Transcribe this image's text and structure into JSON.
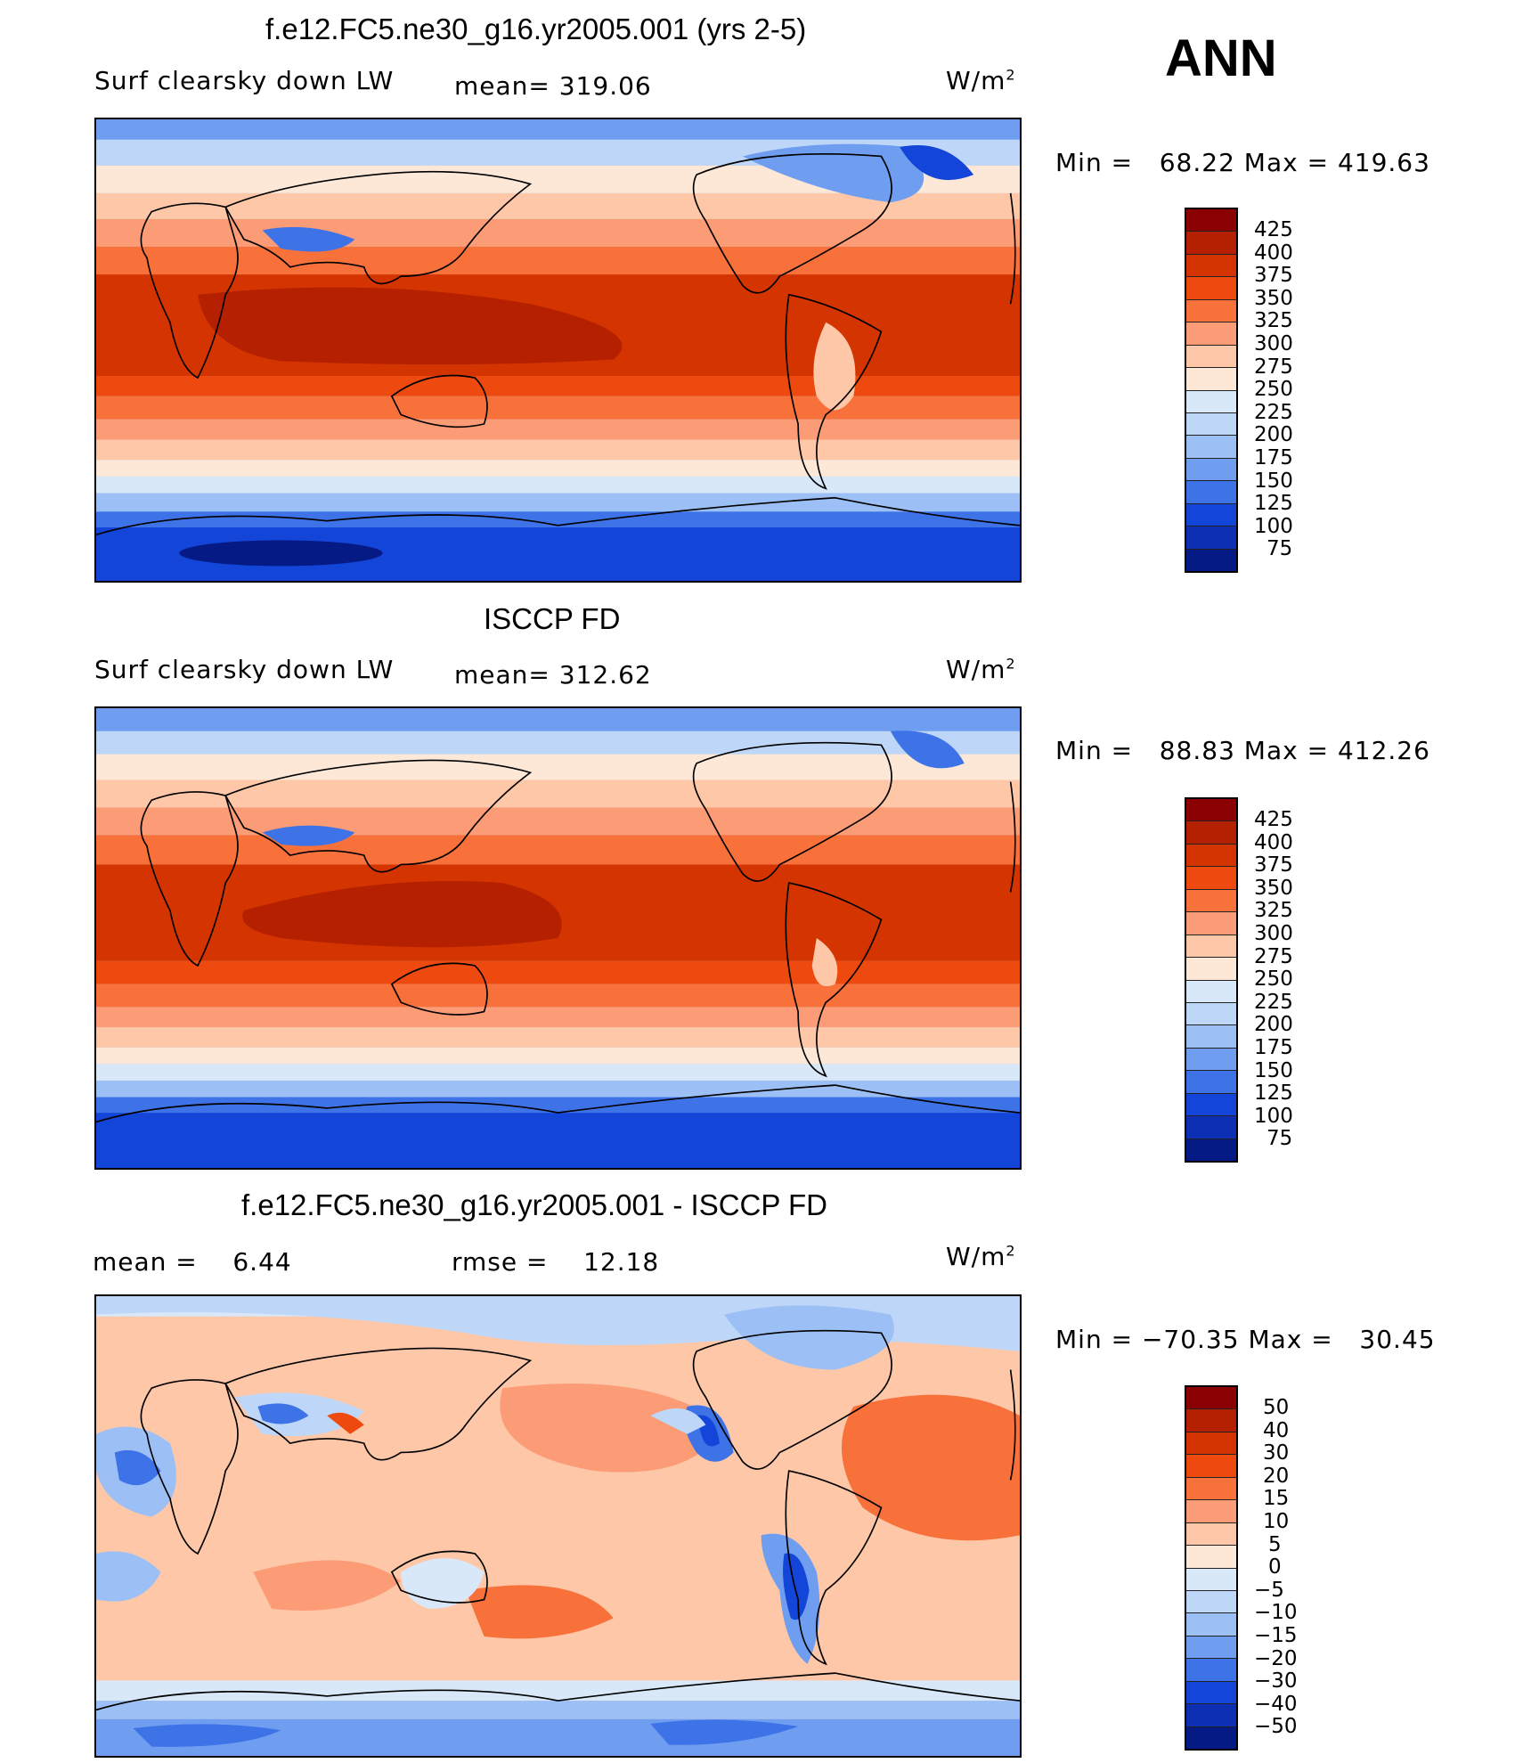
{
  "panels": [
    {
      "title": "f.e12.FC5.ne30_g16.yr2005.001 (yrs 2-5)",
      "variable": "Surf clearsky down LW",
      "mean_text": "mean= 319.06",
      "units_base": "W/m",
      "units_exp": "2",
      "minmax_text": "Min =   68.22 Max = 419.63",
      "colorbar": {
        "levels": [
          "425",
          "400",
          "375",
          "350",
          "325",
          "300",
          "275",
          "250",
          "225",
          "200",
          "175",
          "150",
          "125",
          "100",
          "75"
        ],
        "colors": [
          "#8b0000",
          "#b42000",
          "#d43500",
          "#ee4a10",
          "#f8703a",
          "#fb9c76",
          "#fdc7a8",
          "#fde8d8",
          "#d8e8f8",
          "#bed6f7",
          "#9cc0f5",
          "#6f9ef0",
          "#3e73e8",
          "#1346d8",
          "#0c2fb4",
          "#061a86"
        ]
      },
      "map_labels": []
    },
    {
      "title": "ISCCP FD",
      "variable": "Surf clearsky down LW",
      "mean_text": "mean= 312.62",
      "units_base": "W/m",
      "units_exp": "2",
      "minmax_text": "Min =   88.83 Max = 412.26",
      "colorbar": {
        "levels": [
          "425",
          "400",
          "375",
          "350",
          "325",
          "300",
          "275",
          "250",
          "225",
          "200",
          "175",
          "150",
          "125",
          "100",
          "75"
        ],
        "colors": [
          "#8b0000",
          "#b42000",
          "#d43500",
          "#ee4a10",
          "#f8703a",
          "#fb9c76",
          "#fdc7a8",
          "#fde8d8",
          "#d8e8f8",
          "#bed6f7",
          "#9cc0f5",
          "#6f9ef0",
          "#3e73e8",
          "#1346d8",
          "#0c2fb4",
          "#061a86"
        ]
      }
    },
    {
      "title": "f.e12.FC5.ne30_g16.yr2005.001 - ISCCP FD",
      "mean_text": "mean =    6.44",
      "rmse_text": "rmse =    12.18",
      "units_base": "W/m",
      "units_exp": "2",
      "minmax_text": "Min = −70.35 Max =   30.45",
      "colorbar": {
        "levels": [
          "50",
          "40",
          "30",
          "20",
          "15",
          "10",
          "5",
          "0",
          "−5",
          "−10",
          "−15",
          "−20",
          "−30",
          "−40",
          "−50"
        ],
        "colors": [
          "#8b0000",
          "#b42000",
          "#d43500",
          "#ee4a10",
          "#f8703a",
          "#fb9c76",
          "#fdc7a8",
          "#fde8d8",
          "#d8e8f8",
          "#bed6f7",
          "#9cc0f5",
          "#6f9ef0",
          "#3e73e8",
          "#1346d8",
          "#0c2fb4",
          "#061a86"
        ]
      }
    }
  ],
  "season": "ANN",
  "palette": {
    "dark_red": "#8b0000",
    "red": "#d43500",
    "orange": "#f8703a",
    "peach": "#fdc7a8",
    "cream": "#fde8d8",
    "pale_blue": "#d8e8f8",
    "light_blue": "#9cc0f5",
    "blue": "#3e73e8",
    "navy": "#061a86"
  }
}
